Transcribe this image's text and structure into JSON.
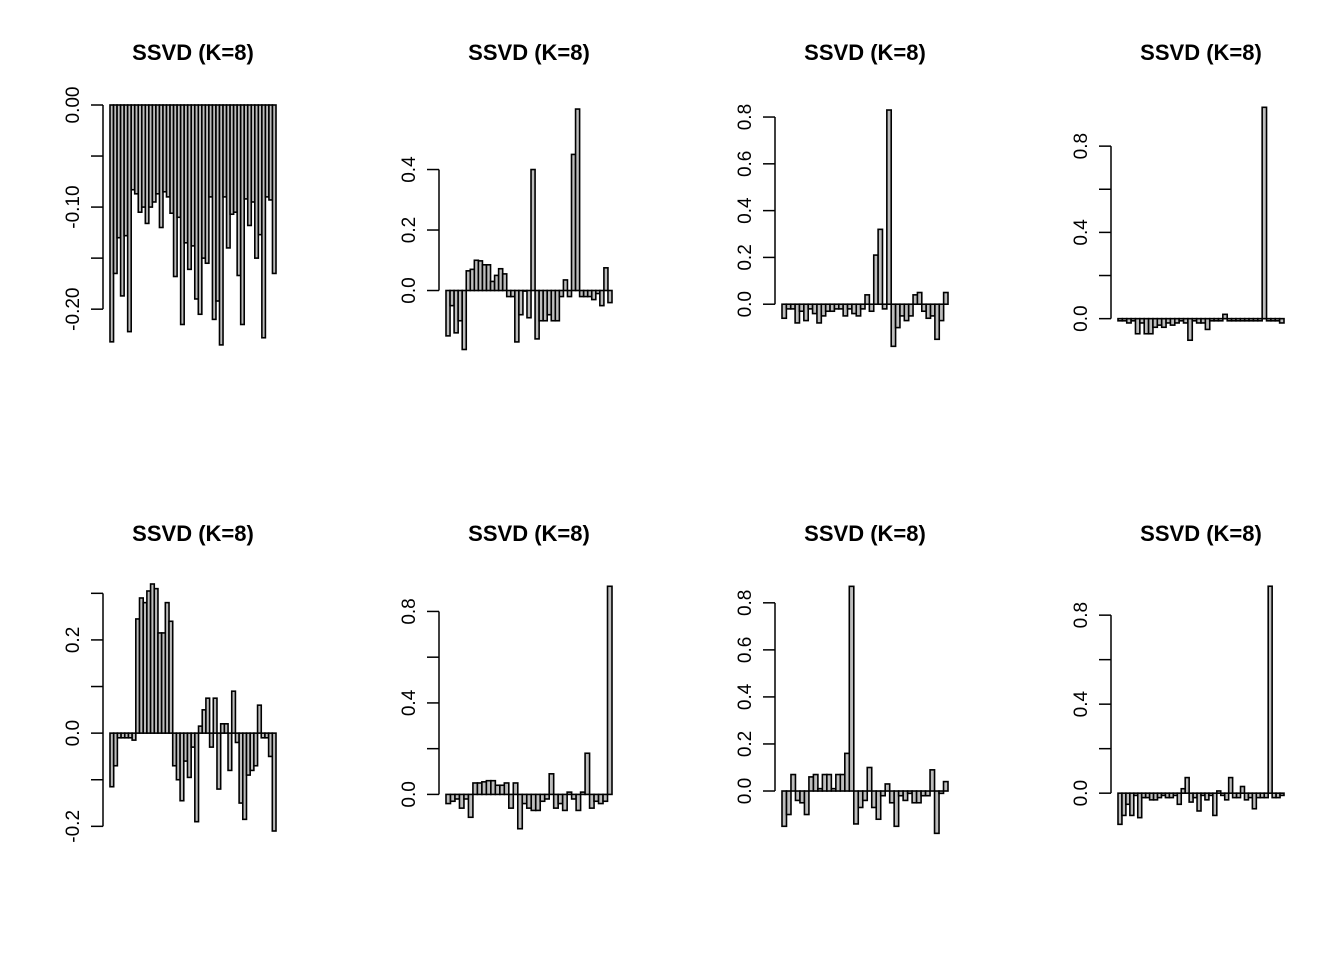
{
  "chart_data": [
    {
      "type": "bar",
      "title": "SSVD (K=8)",
      "ylim": [
        -0.24,
        0.0
      ],
      "yticks": [
        0.0,
        -0.1,
        -0.2
      ],
      "ytick_labels": [
        "0.00",
        "-0.10",
        "-0.20"
      ],
      "minor_ticks": [
        -0.05,
        -0.15
      ],
      "values": [
        -0.232,
        -0.165,
        -0.13,
        -0.187,
        -0.128,
        -0.222,
        -0.083,
        -0.087,
        -0.105,
        -0.1,
        -0.116,
        -0.1,
        -0.095,
        -0.087,
        -0.12,
        -0.085,
        -0.09,
        -0.106,
        -0.168,
        -0.11,
        -0.215,
        -0.135,
        -0.161,
        -0.138,
        -0.19,
        -0.205,
        -0.15,
        -0.155,
        -0.09,
        -0.21,
        -0.192,
        -0.235,
        -0.09,
        -0.14,
        -0.107,
        -0.105,
        -0.167,
        -0.215,
        -0.092,
        -0.118,
        -0.095,
        -0.15,
        -0.127,
        -0.228,
        -0.09,
        -0.093,
        -0.165
      ]
    },
    {
      "type": "bar",
      "title": "SSVD (K=8)",
      "ylim": [
        -0.2,
        0.62
      ],
      "yticks": [
        0.0,
        0.2,
        0.4
      ],
      "ytick_labels": [
        "0.0",
        "0.2",
        "0.4"
      ],
      "values": [
        -0.15,
        -0.05,
        -0.14,
        -0.1,
        -0.195,
        0.065,
        0.07,
        0.1,
        0.098,
        0.085,
        0.085,
        0.03,
        0.05,
        0.072,
        0.055,
        -0.02,
        -0.02,
        -0.17,
        -0.08,
        0.0,
        -0.09,
        0.4,
        -0.16,
        -0.1,
        -0.1,
        -0.08,
        -0.1,
        -0.1,
        -0.02,
        0.035,
        -0.02,
        0.45,
        0.6,
        -0.02,
        -0.02,
        -0.02,
        -0.03,
        -0.01,
        -0.05,
        0.075,
        -0.04
      ]
    },
    {
      "type": "bar",
      "title": "SSVD (K=8)",
      "ylim": [
        -0.2,
        0.86
      ],
      "yticks": [
        0.0,
        0.2,
        0.4,
        0.6,
        0.8
      ],
      "ytick_labels": [
        "0.0",
        "0.2",
        "0.4",
        "0.6",
        "0.8"
      ],
      "values": [
        -0.06,
        -0.02,
        -0.02,
        -0.08,
        -0.03,
        -0.07,
        -0.02,
        -0.04,
        -0.08,
        -0.05,
        -0.03,
        -0.03,
        -0.02,
        -0.02,
        -0.05,
        -0.02,
        -0.04,
        -0.05,
        -0.02,
        0.04,
        -0.03,
        0.21,
        0.32,
        -0.02,
        0.83,
        -0.18,
        -0.1,
        -0.05,
        -0.07,
        -0.05,
        0.04,
        0.05,
        -0.03,
        -0.06,
        -0.05,
        -0.15,
        -0.07,
        0.05
      ]
    },
    {
      "type": "bar",
      "title": "SSVD (K=8)",
      "ylim": [
        -0.15,
        1.0
      ],
      "yticks": [
        0.0,
        0.4,
        0.8
      ],
      "ytick_labels": [
        "0.0",
        "0.4",
        "0.8"
      ],
      "minor_ticks": [
        0.2,
        0.6
      ],
      "values": [
        -0.01,
        -0.01,
        -0.02,
        -0.01,
        -0.07,
        -0.02,
        -0.07,
        -0.07,
        -0.04,
        -0.03,
        -0.04,
        -0.02,
        -0.03,
        -0.02,
        -0.01,
        -0.02,
        -0.1,
        -0.01,
        -0.02,
        -0.02,
        -0.05,
        -0.01,
        -0.01,
        -0.01,
        0.02,
        -0.01,
        -0.01,
        -0.01,
        -0.01,
        -0.01,
        -0.01,
        -0.01,
        -0.01,
        0.98,
        -0.01,
        -0.01,
        -0.01,
        -0.02
      ]
    },
    {
      "type": "bar",
      "title": "SSVD (K=8)",
      "ylim": [
        -0.21,
        0.32
      ],
      "yticks": [
        0.0,
        0.2,
        -0.2
      ],
      "ytick_labels": [
        "0.0",
        "0.2",
        "-0.2"
      ],
      "minor_ticks": [
        0.1,
        -0.1,
        0.3
      ],
      "values": [
        -0.115,
        -0.07,
        -0.01,
        -0.01,
        -0.01,
        -0.01,
        -0.015,
        0.245,
        0.29,
        0.28,
        0.305,
        0.32,
        0.31,
        0.215,
        0.215,
        0.28,
        0.24,
        -0.07,
        -0.1,
        -0.145,
        -0.06,
        -0.095,
        -0.03,
        -0.19,
        0.015,
        0.05,
        0.075,
        -0.03,
        0.075,
        -0.12,
        0.02,
        0.02,
        -0.08,
        0.09,
        -0.02,
        -0.15,
        -0.185,
        -0.09,
        -0.08,
        -0.07,
        0.06,
        -0.01,
        -0.01,
        -0.05,
        -0.21
      ]
    },
    {
      "type": "bar",
      "title": "SSVD (K=8)",
      "ylim": [
        -0.16,
        0.92
      ],
      "yticks": [
        0.0,
        0.4,
        0.8
      ],
      "ytick_labels": [
        "0.0",
        "0.4",
        "0.8"
      ],
      "minor_ticks": [
        0.2,
        0.6
      ],
      "values": [
        -0.04,
        -0.03,
        -0.02,
        -0.06,
        -0.02,
        -0.1,
        0.05,
        0.05,
        0.055,
        0.06,
        0.06,
        0.04,
        0.04,
        0.05,
        -0.06,
        0.05,
        -0.15,
        -0.04,
        -0.06,
        -0.07,
        -0.07,
        -0.03,
        -0.02,
        0.09,
        -0.06,
        -0.04,
        -0.07,
        0.01,
        -0.02,
        -0.07,
        0.01,
        0.18,
        -0.06,
        -0.03,
        -0.04,
        -0.03,
        0.91
      ]
    },
    {
      "type": "bar",
      "title": "SSVD (K=8)",
      "ylim": [
        -0.17,
        0.88
      ],
      "yticks": [
        0.0,
        0.2,
        0.4,
        0.6,
        0.8
      ],
      "ytick_labels": [
        "0.0",
        "0.2",
        "0.4",
        "0.6",
        "0.8"
      ],
      "values": [
        -0.15,
        -0.1,
        0.07,
        -0.04,
        -0.05,
        -0.1,
        0.06,
        0.07,
        0.01,
        0.07,
        0.07,
        0.01,
        0.07,
        0.07,
        0.16,
        0.87,
        -0.14,
        -0.07,
        -0.04,
        0.1,
        -0.07,
        -0.12,
        -0.02,
        0.03,
        -0.05,
        -0.15,
        -0.02,
        -0.04,
        -0.01,
        -0.05,
        -0.05,
        -0.02,
        -0.02,
        0.09,
        -0.18,
        -0.01,
        0.04
      ]
    },
    {
      "type": "bar",
      "title": "SSVD (K=8)",
      "ylim": [
        -0.17,
        0.94
      ],
      "yticks": [
        0.0,
        0.4,
        0.8
      ],
      "ytick_labels": [
        "0.0",
        "0.4",
        "0.8"
      ],
      "minor_ticks": [
        0.2,
        0.6
      ],
      "values": [
        -0.14,
        -0.1,
        -0.05,
        -0.1,
        -0.01,
        -0.11,
        -0.02,
        -0.02,
        -0.03,
        -0.03,
        -0.02,
        -0.01,
        -0.02,
        -0.02,
        -0.01,
        -0.05,
        0.02,
        0.07,
        -0.04,
        -0.02,
        -0.08,
        -0.01,
        -0.03,
        -0.01,
        -0.1,
        0.01,
        -0.01,
        -0.03,
        0.07,
        -0.02,
        -0.02,
        0.03,
        -0.03,
        -0.02,
        -0.07,
        -0.02,
        -0.02,
        -0.02,
        0.93,
        -0.02,
        -0.02,
        -0.01
      ]
    }
  ]
}
